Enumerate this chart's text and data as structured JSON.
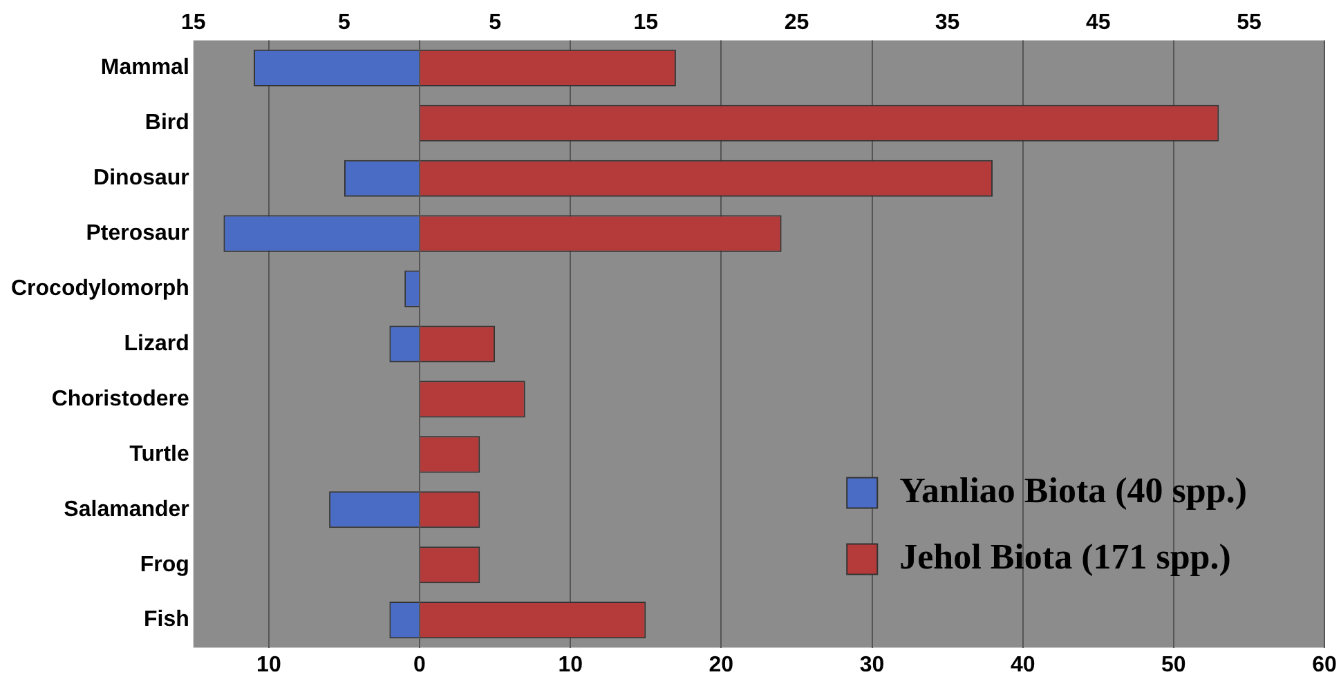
{
  "chart_data": {
    "type": "bar",
    "orientation": "horizontal",
    "stacked": true,
    "categories": [
      "Mammal",
      "Bird",
      "Dinosaur",
      "Pterosaur",
      "Crocodylomorph",
      "Lizard",
      "Choristodere",
      "Turtle",
      "Salamander",
      "Frog",
      "Fish"
    ],
    "series": [
      {
        "name": "Yanliao Biota (40 spp.)",
        "color": "#4a6cc4",
        "values": [
          -11,
          null,
          -5,
          -13,
          -1,
          -2,
          null,
          null,
          -6,
          null,
          -2
        ]
      },
      {
        "name": "Jehol Biota (171 spp.)",
        "color": "#b53a3a",
        "values": [
          17,
          53,
          38,
          24,
          null,
          5,
          7,
          4,
          4,
          4,
          15
        ]
      }
    ],
    "xlim": [
      -15,
      60
    ],
    "xticks": [
      {
        "value": -10,
        "label": "10"
      },
      0,
      10,
      20,
      30,
      40,
      50,
      60
    ],
    "x2lim": [
      -15,
      60
    ],
    "x2ticks": [
      {
        "value": -15,
        "label": "15"
      },
      {
        "value": -5,
        "label": "5"
      },
      5,
      15,
      25,
      35,
      45,
      55
    ],
    "grid": "x",
    "legend": "bottom right"
  }
}
